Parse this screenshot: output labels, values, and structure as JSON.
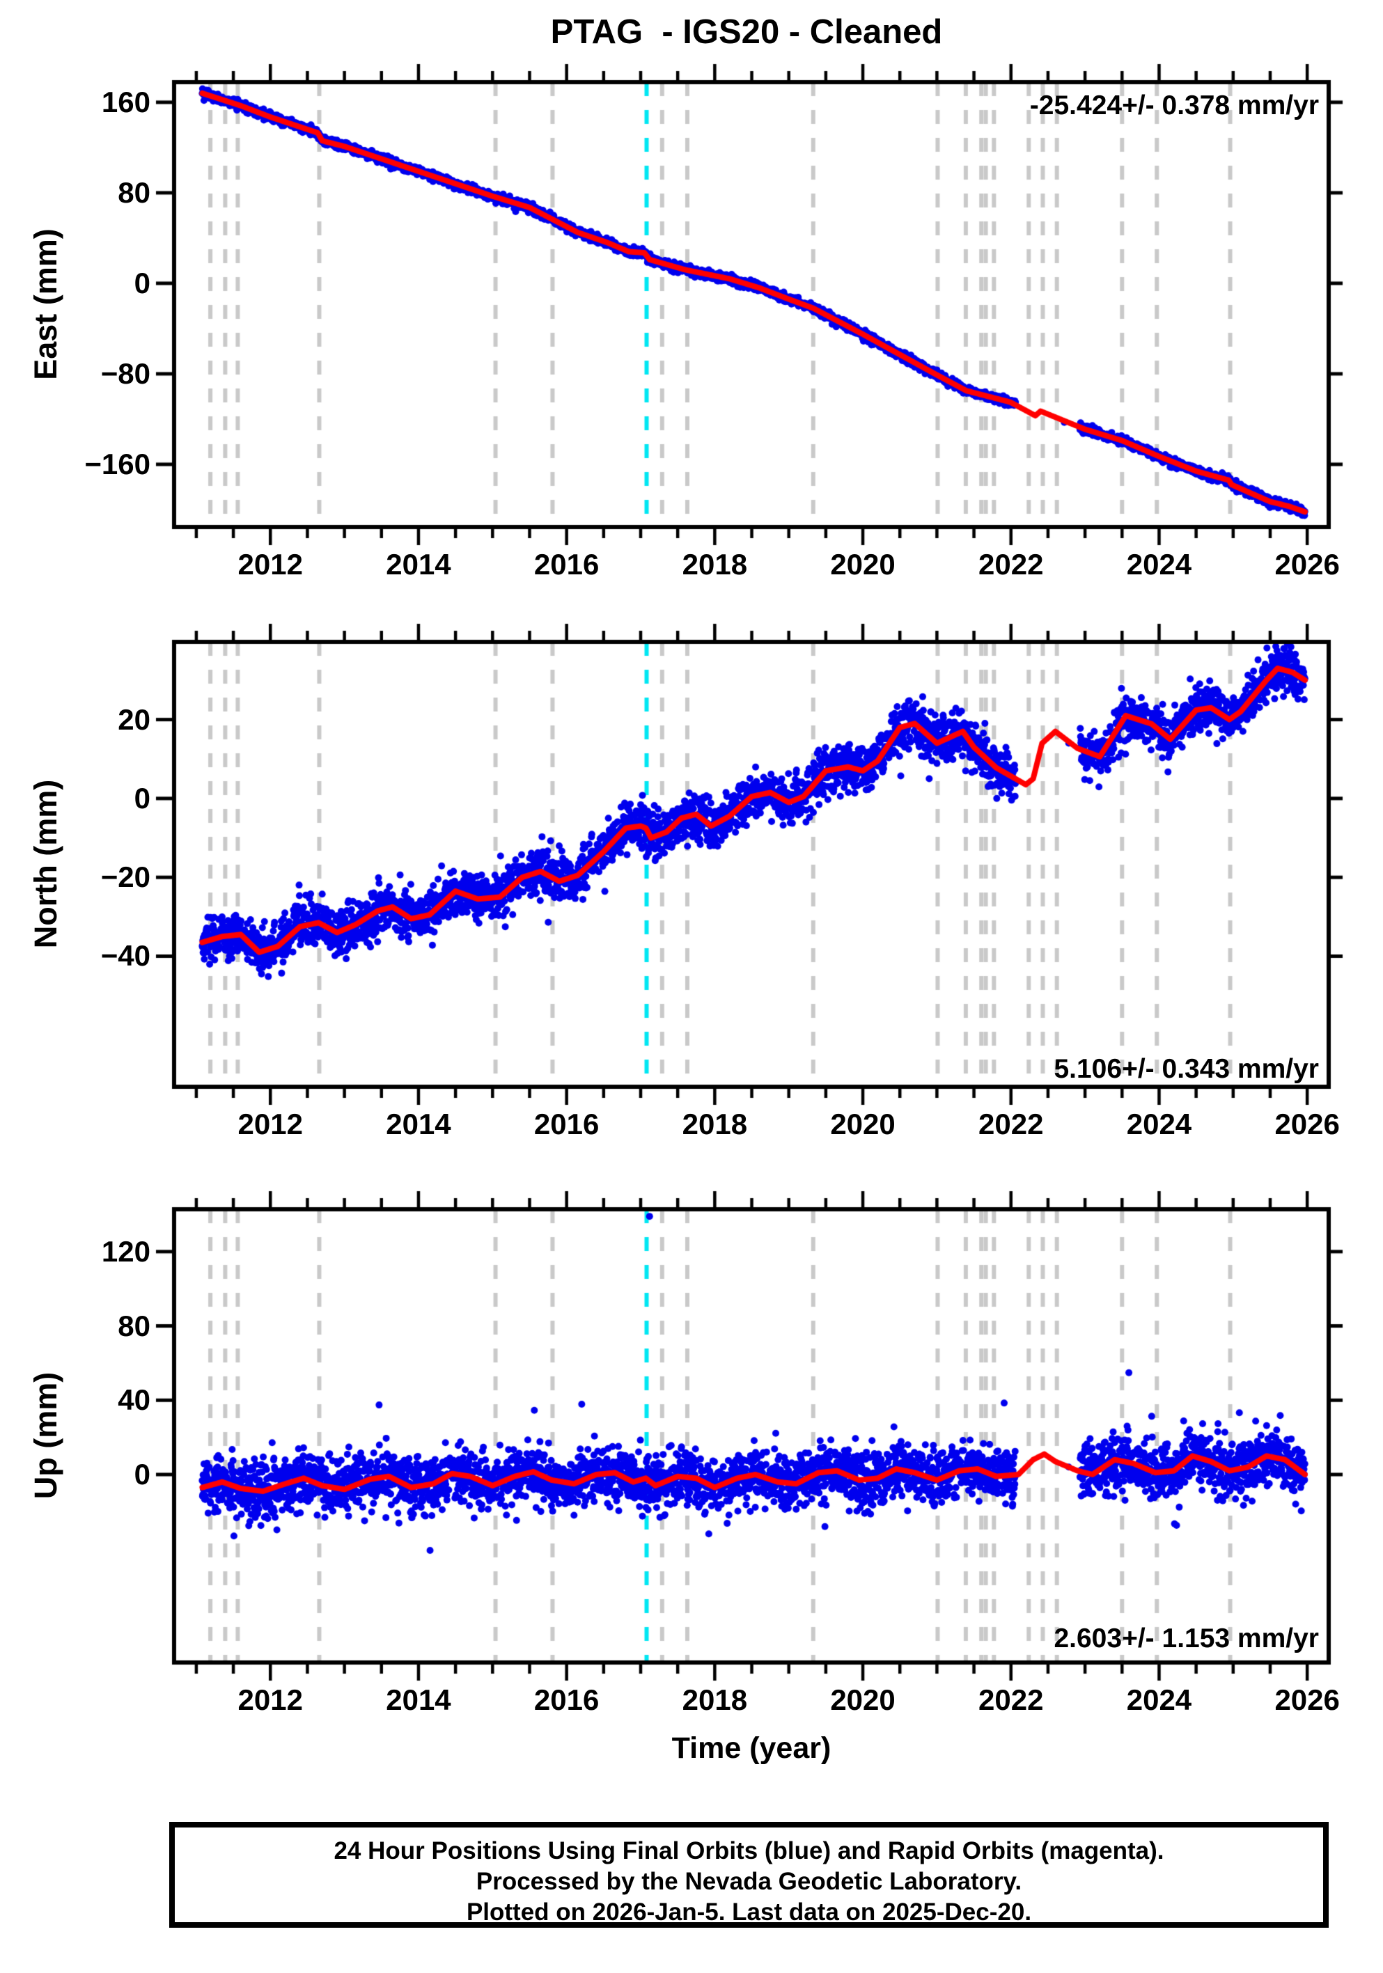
{
  "title": "PTAG  - IGS20 - Cleaned",
  "footer": {
    "lines": [
      "24 Hour Positions Using Final Orbits (blue) and Rapid Orbits (magenta).",
      "Processed by the Nevada Geodetic Laboratory.",
      "Plotted on 2026-Jan-5. Last data on 2025-Dec-20."
    ]
  },
  "time_axis": {
    "label": "Time (year)",
    "min": 2010.7,
    "max": 2026.29,
    "label_years": [
      2012,
      2014,
      2016,
      2018,
      2020,
      2022,
      2024,
      2026
    ],
    "minor_tick_step": 0.5,
    "tick_start": 2011.0,
    "tick_end": 2026.0
  },
  "events": {
    "gray_dashed_years": [
      2011.19,
      2011.39,
      2011.56,
      2012.66,
      2015.04,
      2015.81,
      2017.29,
      2017.63,
      2019.33,
      2021.01,
      2021.39,
      2021.6,
      2021.66,
      2021.77,
      2022.24,
      2022.43,
      2022.62,
      2023.5,
      2023.97,
      2024.96
    ],
    "cyan_dashed_year": 2017.08
  },
  "colors": {
    "points": "#0000ee",
    "trend": "#ff0000",
    "gray_event": "#c9c9c9",
    "cyan_event": "#00e6f2",
    "axis": "#000000",
    "background": "#ffffff"
  },
  "data_span": {
    "start": 2011.08,
    "end": 2025.97,
    "gap": [
      2022.06,
      2022.93
    ]
  },
  "chart_data": [
    {
      "type": "scatter",
      "component": "East",
      "ylabel": "East (mm)",
      "rate_label": "-25.424+/- 0.378 mm/yr",
      "rate_position": "top-right",
      "ymin": -215.4,
      "ymax": 177.8,
      "yticks": [
        160,
        80,
        0,
        -80,
        -160
      ],
      "scatter_sigma_mm": 1.9,
      "trend": [
        [
          2011.08,
          168
        ],
        [
          2011.6,
          157
        ],
        [
          2012.0,
          147
        ],
        [
          2012.64,
          133
        ],
        [
          2012.7,
          126
        ],
        [
          2013.0,
          121
        ],
        [
          2014.0,
          99
        ],
        [
          2015.0,
          77
        ],
        [
          2015.5,
          67
        ],
        [
          2016.15,
          45
        ],
        [
          2016.55,
          36
        ],
        [
          2016.84,
          28
        ],
        [
          2017.05,
          27
        ],
        [
          2017.12,
          21
        ],
        [
          2017.6,
          12
        ],
        [
          2018.2,
          4
        ],
        [
          2018.6,
          -4
        ],
        [
          2019.0,
          -14
        ],
        [
          2019.33,
          -22
        ],
        [
          2020.0,
          -45
        ],
        [
          2020.5,
          -63
        ],
        [
          2021.0,
          -81
        ],
        [
          2021.4,
          -95
        ],
        [
          2021.99,
          -105
        ],
        [
          2022.33,
          -117
        ],
        [
          2022.4,
          -113
        ],
        [
          2023.0,
          -129
        ],
        [
          2023.5,
          -139
        ],
        [
          2024.0,
          -153
        ],
        [
          2024.5,
          -166
        ],
        [
          2024.94,
          -174
        ],
        [
          2024.98,
          -178
        ],
        [
          2025.5,
          -193
        ],
        [
          2025.75,
          -197
        ],
        [
          2025.97,
          -202
        ]
      ],
      "extra_points": [
        [
          2022.72,
          -123
        ]
      ]
    },
    {
      "type": "scatter",
      "component": "North",
      "ylabel": "North (mm)",
      "rate_label": "5.106+/- 0.343 mm/yr",
      "rate_position": "bottom-right",
      "ymin": -73.1,
      "ymax": 39.7,
      "yticks": [
        20,
        0,
        -20,
        -40
      ],
      "scatter_sigma_mm": 2.9,
      "trend": [
        [
          2011.08,
          -36.5
        ],
        [
          2011.35,
          -35
        ],
        [
          2011.6,
          -34.5
        ],
        [
          2011.85,
          -39
        ],
        [
          2012.1,
          -37.5
        ],
        [
          2012.4,
          -32.5
        ],
        [
          2012.65,
          -31.5
        ],
        [
          2012.9,
          -34
        ],
        [
          2013.15,
          -32
        ],
        [
          2013.45,
          -28.5
        ],
        [
          2013.65,
          -27.5
        ],
        [
          2013.9,
          -30.5
        ],
        [
          2014.15,
          -29.5
        ],
        [
          2014.5,
          -23.5
        ],
        [
          2014.8,
          -25.5
        ],
        [
          2015.1,
          -25
        ],
        [
          2015.4,
          -20
        ],
        [
          2015.65,
          -18.5
        ],
        [
          2015.9,
          -21
        ],
        [
          2016.15,
          -19.5
        ],
        [
          2016.5,
          -13.5
        ],
        [
          2016.8,
          -7.5
        ],
        [
          2017.0,
          -7
        ],
        [
          2017.07,
          -7.5
        ],
        [
          2017.14,
          -10
        ],
        [
          2017.35,
          -8.5
        ],
        [
          2017.55,
          -5
        ],
        [
          2017.75,
          -4
        ],
        [
          2017.95,
          -7
        ],
        [
          2018.2,
          -4.5
        ],
        [
          2018.5,
          0.5
        ],
        [
          2018.75,
          1.5
        ],
        [
          2019.0,
          -1
        ],
        [
          2019.2,
          0.5
        ],
        [
          2019.5,
          7
        ],
        [
          2019.8,
          8
        ],
        [
          2020.0,
          7
        ],
        [
          2020.2,
          9.5
        ],
        [
          2020.5,
          18
        ],
        [
          2020.7,
          19
        ],
        [
          2021.0,
          14
        ],
        [
          2021.35,
          17
        ],
        [
          2021.5,
          13
        ],
        [
          2021.8,
          7.8
        ],
        [
          2022.2,
          3.5
        ],
        [
          2022.3,
          5
        ],
        [
          2022.42,
          14
        ],
        [
          2022.6,
          17
        ],
        [
          2022.9,
          12.7
        ],
        [
          2023.2,
          10.6
        ],
        [
          2023.55,
          21
        ],
        [
          2023.9,
          18.9
        ],
        [
          2024.15,
          15
        ],
        [
          2024.5,
          22.4
        ],
        [
          2024.7,
          23
        ],
        [
          2024.95,
          20
        ],
        [
          2025.1,
          22
        ],
        [
          2025.45,
          30
        ],
        [
          2025.6,
          33
        ],
        [
          2025.8,
          32
        ],
        [
          2025.97,
          30
        ]
      ],
      "extra_points": [
        [
          2022.78,
          14
        ]
      ]
    },
    {
      "type": "scatter",
      "component": "Up",
      "ylabel": "Up (mm)",
      "rate_label": "2.603+/- 1.153 mm/yr",
      "rate_position": "bottom-right",
      "ymin": -101.2,
      "ymax": 142.8,
      "yticks": [
        120,
        80,
        40,
        0
      ],
      "scatter_sigma_mm": 7.2,
      "outlier_fraction": 0.03,
      "outlier_scale": 2.3,
      "trend": [
        [
          2011.08,
          -7
        ],
        [
          2011.35,
          -4
        ],
        [
          2011.6,
          -7.5
        ],
        [
          2011.9,
          -9
        ],
        [
          2012.2,
          -5
        ],
        [
          2012.45,
          -2
        ],
        [
          2012.7,
          -6
        ],
        [
          2013.0,
          -8
        ],
        [
          2013.35,
          -2.5
        ],
        [
          2013.6,
          -1
        ],
        [
          2013.9,
          -7
        ],
        [
          2014.2,
          -5
        ],
        [
          2014.45,
          0.5
        ],
        [
          2014.7,
          -1
        ],
        [
          2015.0,
          -6
        ],
        [
          2015.3,
          -1
        ],
        [
          2015.55,
          1.5
        ],
        [
          2015.8,
          -3
        ],
        [
          2016.1,
          -5
        ],
        [
          2016.4,
          0
        ],
        [
          2016.65,
          1
        ],
        [
          2016.9,
          -4
        ],
        [
          2017.07,
          -2
        ],
        [
          2017.2,
          -6
        ],
        [
          2017.5,
          -1
        ],
        [
          2017.75,
          -2
        ],
        [
          2018.0,
          -7
        ],
        [
          2018.3,
          -2
        ],
        [
          2018.55,
          0
        ],
        [
          2018.85,
          -4
        ],
        [
          2019.1,
          -5
        ],
        [
          2019.4,
          1
        ],
        [
          2019.65,
          2
        ],
        [
          2019.95,
          -3
        ],
        [
          2020.2,
          -2
        ],
        [
          2020.45,
          3
        ],
        [
          2020.7,
          1
        ],
        [
          2021.0,
          -3
        ],
        [
          2021.3,
          2
        ],
        [
          2021.55,
          3
        ],
        [
          2021.8,
          -1
        ],
        [
          2022.1,
          0
        ],
        [
          2022.3,
          8
        ],
        [
          2022.45,
          11
        ],
        [
          2022.6,
          7
        ],
        [
          2022.9,
          2
        ],
        [
          2023.1,
          0
        ],
        [
          2023.4,
          8
        ],
        [
          2023.65,
          6
        ],
        [
          2023.95,
          1
        ],
        [
          2024.2,
          2
        ],
        [
          2024.45,
          10
        ],
        [
          2024.7,
          7
        ],
        [
          2024.95,
          2
        ],
        [
          2025.2,
          4
        ],
        [
          2025.45,
          10
        ],
        [
          2025.7,
          8
        ],
        [
          2025.97,
          0
        ]
      ],
      "extra_points": [
        [
          2022.78,
          4
        ],
        [
          2017.12,
          139
        ]
      ]
    }
  ]
}
